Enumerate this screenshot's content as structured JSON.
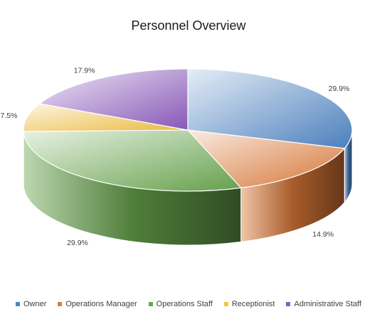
{
  "chart_data": {
    "type": "pie",
    "title": "Personnel Overview",
    "legend_position": "bottom",
    "slices": [
      {
        "name": "Owner",
        "value": 29.9,
        "label": "29.9%",
        "color": "#4f86c6"
      },
      {
        "name": "Operations Manager",
        "value": 14.9,
        "label": "14.9%",
        "color": "#e07b39"
      },
      {
        "name": "Operations Staff",
        "value": 29.9,
        "label": "29.9%",
        "color": "#6aa84f"
      },
      {
        "name": "Receptionist",
        "value": 7.5,
        "label": "7.5%",
        "color": "#f6c343"
      },
      {
        "name": "Administrative Staff",
        "value": 17.9,
        "label": "17.9%",
        "color": "#8e5cc0"
      }
    ]
  }
}
